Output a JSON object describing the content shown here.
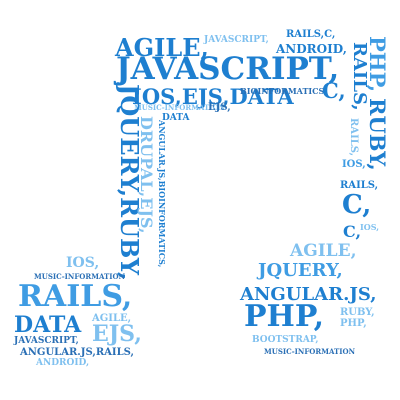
{
  "colors": {
    "primary": "#1e7fd0",
    "medium": "#3f9ce3",
    "light": "#7fc0ef",
    "dark": "#2a6fb5"
  },
  "words": {
    "agile_top": "AGILE,",
    "javascript_small": "JAVASCRIPT,",
    "rails_top": "RAILS,C,",
    "android_top": "ANDROID,",
    "javascript_big": "JAVASCRIPT,",
    "ios_ejs_data": "IOS,EJS,DATA",
    "bioinformatics": "BIOINFORMATICS,",
    "c_mid": "C,",
    "music_info_top": "MUSIC-INFORMATION",
    "ejs_small": "EJS,",
    "data_small": "DATA",
    "jquery_vert": "JQUERY,RUBY,",
    "drupal_vert": "DRUPAL,EJS,",
    "angular_vert": "ANGULAR.JS,BIOINFORMATICS,",
    "php_vert": "PHP,",
    "rails_vert": "RAILS,",
    "ruby_vert": "RUBY,",
    "rails_small_right": "RAILS,",
    "ios_right": "IOS,",
    "rails_right2": "RAILS,",
    "c_big": "C,",
    "ios_tiny": "IOS,",
    "c_small_right": "C,",
    "agile_right": "AGILE,",
    "jquery_right": "JQUERY,",
    "angular_bottom": "ANGULAR.JS,",
    "php_big": "PHP,",
    "ruby_small": "RUBY,",
    "php_small": "PHP,",
    "bootstrap": "BOOTSTRAP,",
    "music_info_bottom": "MUSIC-INFORMATION",
    "ios_left": "IOS,",
    "music_info_left": "MUSIC-INFORMATION",
    "rails_big_left": "RAILS,",
    "data_left": "DATA",
    "agile_left": "AGILE,",
    "ejs_left": "EJS,",
    "javascript_left": "JAVASCRIPT,",
    "angular_rails_left": "ANGULAR.JS,RAILS,",
    "android_left": "ANDROID,"
  }
}
